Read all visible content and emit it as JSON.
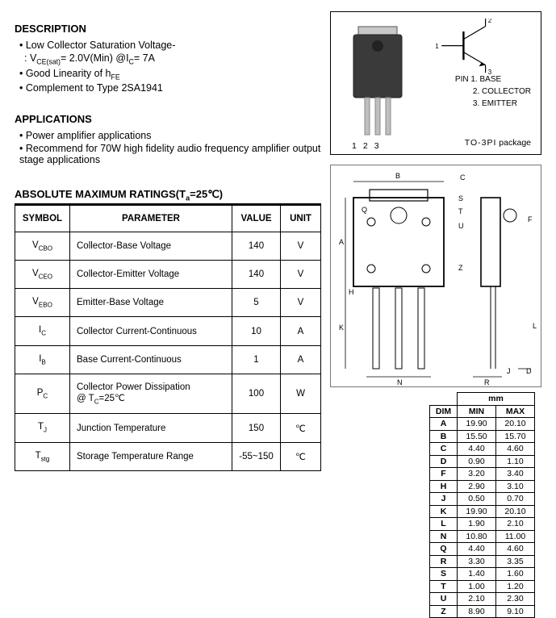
{
  "description": {
    "heading": "DESCRIPTION",
    "bullets": [
      "Low Collector Saturation Voltage-",
      "Good Linearity of h",
      "Complement to Type 2SA1941"
    ],
    "sub_line_prefix": ": V",
    "sub_line_sub1": "CE(sat)",
    "sub_line_mid": "= 2.0V(Min) @I",
    "sub_line_sub2": "C",
    "sub_line_suffix": "= 7A",
    "hfe_sub": "FE"
  },
  "applications": {
    "heading": "APPLICATIONS",
    "bullets": [
      "Power amplifier applications",
      "Recommend for 70W high fidelity audio frequency amplifier output stage applications"
    ]
  },
  "ratings": {
    "heading_prefix": "ABSOLUTE MAXIMUM RATINGS(T",
    "heading_sub": "a",
    "heading_suffix": "=25℃)",
    "headers": {
      "symbol": "SYMBOL",
      "parameter": "PARAMETER",
      "value": "VALUE",
      "unit": "UNIT"
    },
    "rows": [
      {
        "sym": "V",
        "sym_sub": "CBO",
        "param": "Collector-Base Voltage",
        "value": "140",
        "unit": "V"
      },
      {
        "sym": "V",
        "sym_sub": "CEO",
        "param": "Collector-Emitter Voltage",
        "value": "140",
        "unit": "V"
      },
      {
        "sym": "V",
        "sym_sub": "EBO",
        "param": "Emitter-Base Voltage",
        "value": "5",
        "unit": "V"
      },
      {
        "sym": "I",
        "sym_sub": "C",
        "param": "Collector Current-Continuous",
        "value": "10",
        "unit": "A"
      },
      {
        "sym": "I",
        "sym_sub": "B",
        "param": "Base Current-Continuous",
        "value": "1",
        "unit": "A"
      },
      {
        "sym": "P",
        "sym_sub": "C",
        "param": "Collector Power Dissipation",
        "param_line2": "@ T",
        "param_sub": "C",
        "param_suffix": "=25℃",
        "value": "100",
        "unit": "W"
      },
      {
        "sym": "T",
        "sym_sub": "J",
        "param": "Junction Temperature",
        "value": "150",
        "unit": "℃"
      },
      {
        "sym": "T",
        "sym_sub": "stg",
        "param": "Storage Temperature Range",
        "value": "-55~150",
        "unit": "℃"
      }
    ]
  },
  "pinout": {
    "pin_label": "PIN",
    "pins": [
      {
        "n": "1.",
        "name": "BASE"
      },
      {
        "n": "2.",
        "name": "COLLECTOR"
      },
      {
        "n": "3.",
        "name": "EMITTER"
      }
    ],
    "pkg_name": "TO-3PI",
    "pkg_suffix": "package",
    "lead_labels": [
      "1",
      "2",
      "3"
    ],
    "term_labels": [
      "1",
      "2",
      "3"
    ]
  },
  "mech": {
    "dim_letters": [
      "A",
      "B",
      "C",
      "D",
      "F",
      "H",
      "J",
      "K",
      "L",
      "N",
      "Q",
      "R",
      "S",
      "T",
      "U",
      "Z"
    ]
  },
  "dimensions": {
    "unit_head": "mm",
    "dim_head": "DIM",
    "min_head": "MIN",
    "max_head": "MAX",
    "rows": [
      {
        "d": "A",
        "min": "19.90",
        "max": "20.10"
      },
      {
        "d": "B",
        "min": "15.50",
        "max": "15.70"
      },
      {
        "d": "C",
        "min": "4.40",
        "max": "4.60"
      },
      {
        "d": "D",
        "min": "0.90",
        "max": "1.10"
      },
      {
        "d": "F",
        "min": "3.20",
        "max": "3.40"
      },
      {
        "d": "H",
        "min": "2.90",
        "max": "3.10"
      },
      {
        "d": "J",
        "min": "0.50",
        "max": "0.70"
      },
      {
        "d": "K",
        "min": "19.90",
        "max": "20.10"
      },
      {
        "d": "L",
        "min": "1.90",
        "max": "2.10"
      },
      {
        "d": "N",
        "min": "10.80",
        "max": "11.00"
      },
      {
        "d": "Q",
        "min": "4.40",
        "max": "4.60"
      },
      {
        "d": "R",
        "min": "3.30",
        "max": "3.35"
      },
      {
        "d": "S",
        "min": "1.40",
        "max": "1.60"
      },
      {
        "d": "T",
        "min": "1.00",
        "max": "1.20"
      },
      {
        "d": "U",
        "min": "2.10",
        "max": "2.30"
      },
      {
        "d": "Z",
        "min": "8.90",
        "max": "9.10"
      }
    ]
  },
  "colors": {
    "text": "#000000",
    "border": "#000000",
    "mech_border": "#777777",
    "pkg_body": "#3a3a3a",
    "pkg_tab": "#c8c8c8",
    "pkg_lead": "#bfbfbf"
  }
}
